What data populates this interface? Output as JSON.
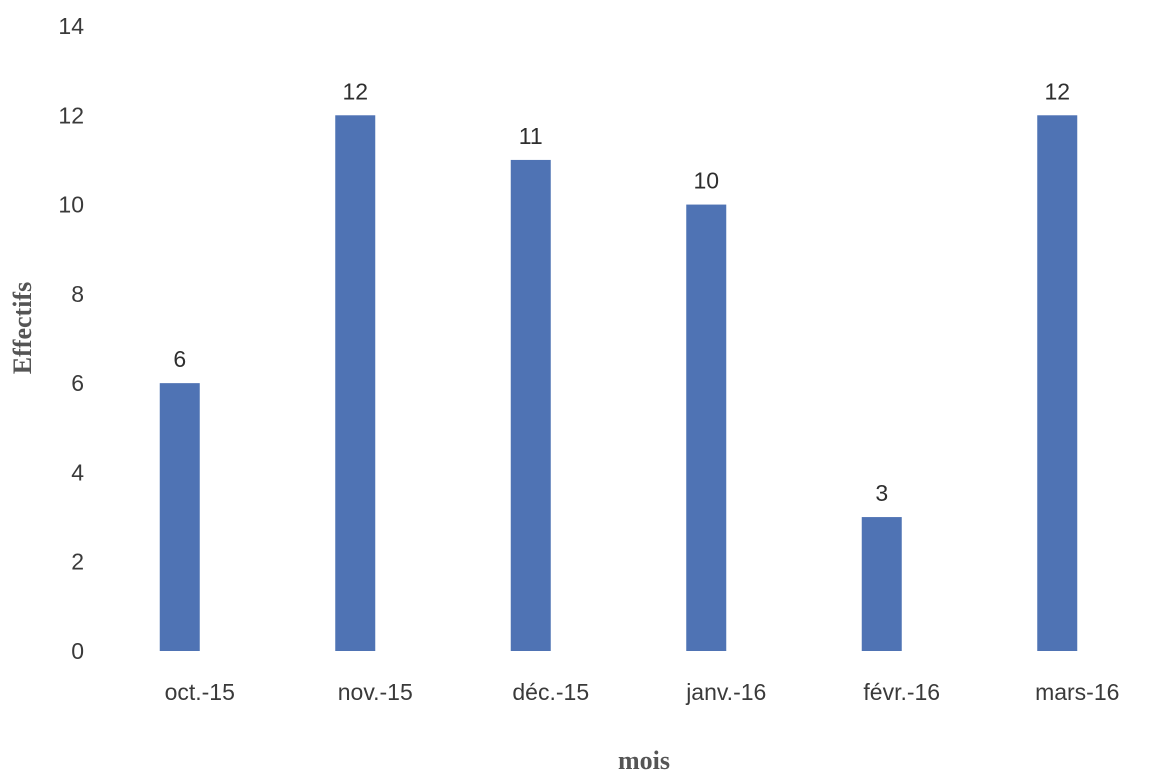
{
  "chart_data": {
    "type": "bar",
    "categories": [
      "oct.-15",
      "nov.-15",
      "déc.-15",
      "janv.-16",
      "févr.-16",
      "mars-16"
    ],
    "values": [
      6,
      12,
      11,
      10,
      3,
      12
    ],
    "xlabel": "mois",
    "ylabel": "Effectifs",
    "ylim": [
      0,
      14
    ],
    "yticks": [
      0,
      2,
      4,
      6,
      8,
      10,
      12,
      14
    ],
    "grid": false,
    "legend": "none",
    "bar_color": "#4F73B4"
  }
}
